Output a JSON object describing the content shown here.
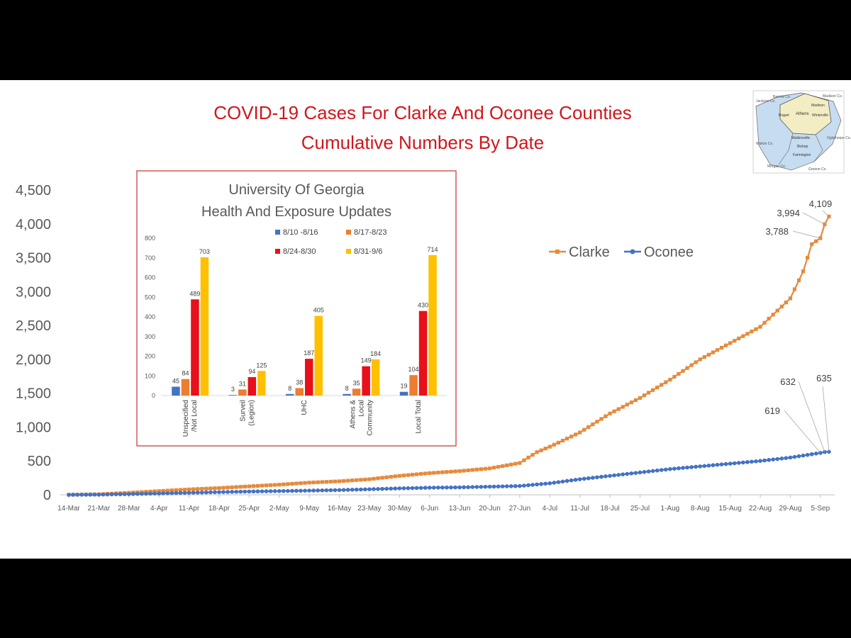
{
  "title": {
    "line1": "COVID-19 Cases For Clarke And Oconee Counties",
    "line2": "Cumulative Numbers By Date"
  },
  "map_inset": {
    "labels": [
      "Barrow Co.",
      "Madison Co.",
      "Madison",
      "Athens",
      "Winterville",
      "Bogart",
      "Watkinsville",
      "Bishop",
      "Farmington",
      "Walton Co.",
      "Morgan Co.",
      "Greene Co.",
      "Oglethorpe Co.",
      "Jackson Co."
    ],
    "colors": {
      "clarke": "#f3edc4",
      "oconee": "#c6dcf0"
    }
  },
  "chart_data": [
    {
      "type": "line",
      "title": "",
      "xlabel": "",
      "ylabel": "",
      "ylim": [
        0,
        4500
      ],
      "y_ticks": [
        0,
        500,
        1000,
        1500,
        2000,
        2500,
        3000,
        3500,
        4000,
        4500
      ],
      "y_tick_labels": [
        "0",
        "500",
        "1,000",
        "1,500",
        "2,000",
        "2,500",
        "3,000",
        "3,500",
        "4,000",
        "4,500"
      ],
      "x_tick_labels": [
        "14-Mar",
        "21-Mar",
        "28-Mar",
        "4-Apr",
        "11-Apr",
        "18-Apr",
        "25-Apr",
        "2-May",
        "9-May",
        "16-May",
        "23-May",
        "30-May",
        "6-Jun",
        "13-Jun",
        "20-Jun",
        "27-Jun",
        "4-Jul",
        "11-Jul",
        "18-Jul",
        "25-Jul",
        "1-Aug",
        "8-Aug",
        "15-Aug",
        "22-Aug",
        "29-Aug",
        "5-Sep"
      ],
      "legend": {
        "placement": "right",
        "entries": [
          "Clarke",
          "Oconee"
        ]
      },
      "series": [
        {
          "name": "Clarke",
          "color": "#e68a3c",
          "points": [
            [
              "14-Mar",
              2
            ],
            [
              "21-Mar",
              8
            ],
            [
              "28-Mar",
              30
            ],
            [
              "4-Apr",
              55
            ],
            [
              "11-Apr",
              80
            ],
            [
              "18-Apr",
              100
            ],
            [
              "25-Apr",
              125
            ],
            [
              "2-May",
              150
            ],
            [
              "9-May",
              180
            ],
            [
              "16-May",
              200
            ],
            [
              "23-May",
              230
            ],
            [
              "30-May",
              280
            ],
            [
              "6-Jun",
              320
            ],
            [
              "13-Jun",
              350
            ],
            [
              "20-Jun",
              390
            ],
            [
              "27-Jun",
              470
            ],
            [
              "1-Jul",
              630
            ],
            [
              "4-Jul",
              710
            ],
            [
              "11-Jul",
              920
            ],
            [
              "18-Jul",
              1200
            ],
            [
              "25-Jul",
              1430
            ],
            [
              "1-Aug",
              1700
            ],
            [
              "8-Aug",
              2000
            ],
            [
              "15-Aug",
              2240
            ],
            [
              "22-Aug",
              2480
            ],
            [
              "29-Aug",
              2900
            ],
            [
              "1-Sep",
              3300
            ],
            [
              "3-Sep",
              3700
            ],
            [
              "5-Sep",
              3788
            ],
            [
              "6-Sep",
              3994
            ],
            [
              "7-Sep",
              4109
            ]
          ]
        },
        {
          "name": "Oconee",
          "color": "#4472c4",
          "points": [
            [
              "14-Mar",
              0
            ],
            [
              "21-Mar",
              3
            ],
            [
              "28-Mar",
              10
            ],
            [
              "4-Apr",
              20
            ],
            [
              "11-Apr",
              30
            ],
            [
              "18-Apr",
              40
            ],
            [
              "25-Apr",
              48
            ],
            [
              "2-May",
              55
            ],
            [
              "9-May",
              62
            ],
            [
              "16-May",
              70
            ],
            [
              "23-May",
              82
            ],
            [
              "30-May",
              95
            ],
            [
              "6-Jun",
              105
            ],
            [
              "13-Jun",
              110
            ],
            [
              "20-Jun",
              120
            ],
            [
              "27-Jun",
              130
            ],
            [
              "4-Jul",
              170
            ],
            [
              "11-Jul",
              230
            ],
            [
              "18-Jul",
              280
            ],
            [
              "25-Jul",
              330
            ],
            [
              "1-Aug",
              380
            ],
            [
              "8-Aug",
              420
            ],
            [
              "15-Aug",
              460
            ],
            [
              "22-Aug",
              500
            ],
            [
              "29-Aug",
              550
            ],
            [
              "5-Sep",
              619
            ],
            [
              "6-Sep",
              632
            ],
            [
              "7-Sep",
              635
            ]
          ]
        }
      ],
      "annotations": [
        {
          "label": "4,109",
          "series": "Clarke",
          "x": "7-Sep",
          "y": 4109
        },
        {
          "label": "3,994",
          "series": "Clarke",
          "x": "6-Sep",
          "y": 3994
        },
        {
          "label": "3,788",
          "series": "Clarke",
          "x": "5-Sep",
          "y": 3788
        },
        {
          "label": "635",
          "series": "Oconee",
          "x": "7-Sep",
          "y": 635
        },
        {
          "label": "632",
          "series": "Oconee",
          "x": "6-Sep",
          "y": 632
        },
        {
          "label": "619",
          "series": "Oconee",
          "x": "5-Sep",
          "y": 619
        }
      ]
    },
    {
      "type": "bar",
      "title_lines": [
        "University Of Georgia",
        "Health And Exposure Updates"
      ],
      "ylim": [
        0,
        800
      ],
      "y_ticks": [
        0,
        100,
        200,
        300,
        400,
        500,
        600,
        700,
        800
      ],
      "y_tick_labels": [
        "0",
        "100",
        "200",
        "300",
        "400",
        "500",
        "600",
        "700",
        "800"
      ],
      "categories": [
        {
          "lines": [
            "Unspecified",
            "/Not Local"
          ]
        },
        {
          "lines": [
            "Surveil",
            "(Legion)"
          ]
        },
        {
          "lines": [
            "UHC"
          ]
        },
        {
          "lines": [
            "Athens &",
            "Local",
            "Community"
          ]
        },
        {
          "lines": [
            "Local Total"
          ]
        }
      ],
      "legend": {
        "placement": "top"
      },
      "series": [
        {
          "name": "8/10 -8/16",
          "color": "#4472c4",
          "values": [
            45,
            3,
            8,
            8,
            19
          ]
        },
        {
          "name": "8/17-8/23",
          "color": "#ed7d31",
          "values": [
            84,
            31,
            38,
            35,
            104
          ]
        },
        {
          "name": "8/24-8/30",
          "color": "#e8101a",
          "values": [
            489,
            94,
            187,
            149,
            430
          ]
        },
        {
          "name": "8/31-9/6",
          "color": "#ffc000",
          "values": [
            703,
            125,
            405,
            184,
            714
          ]
        }
      ]
    }
  ]
}
